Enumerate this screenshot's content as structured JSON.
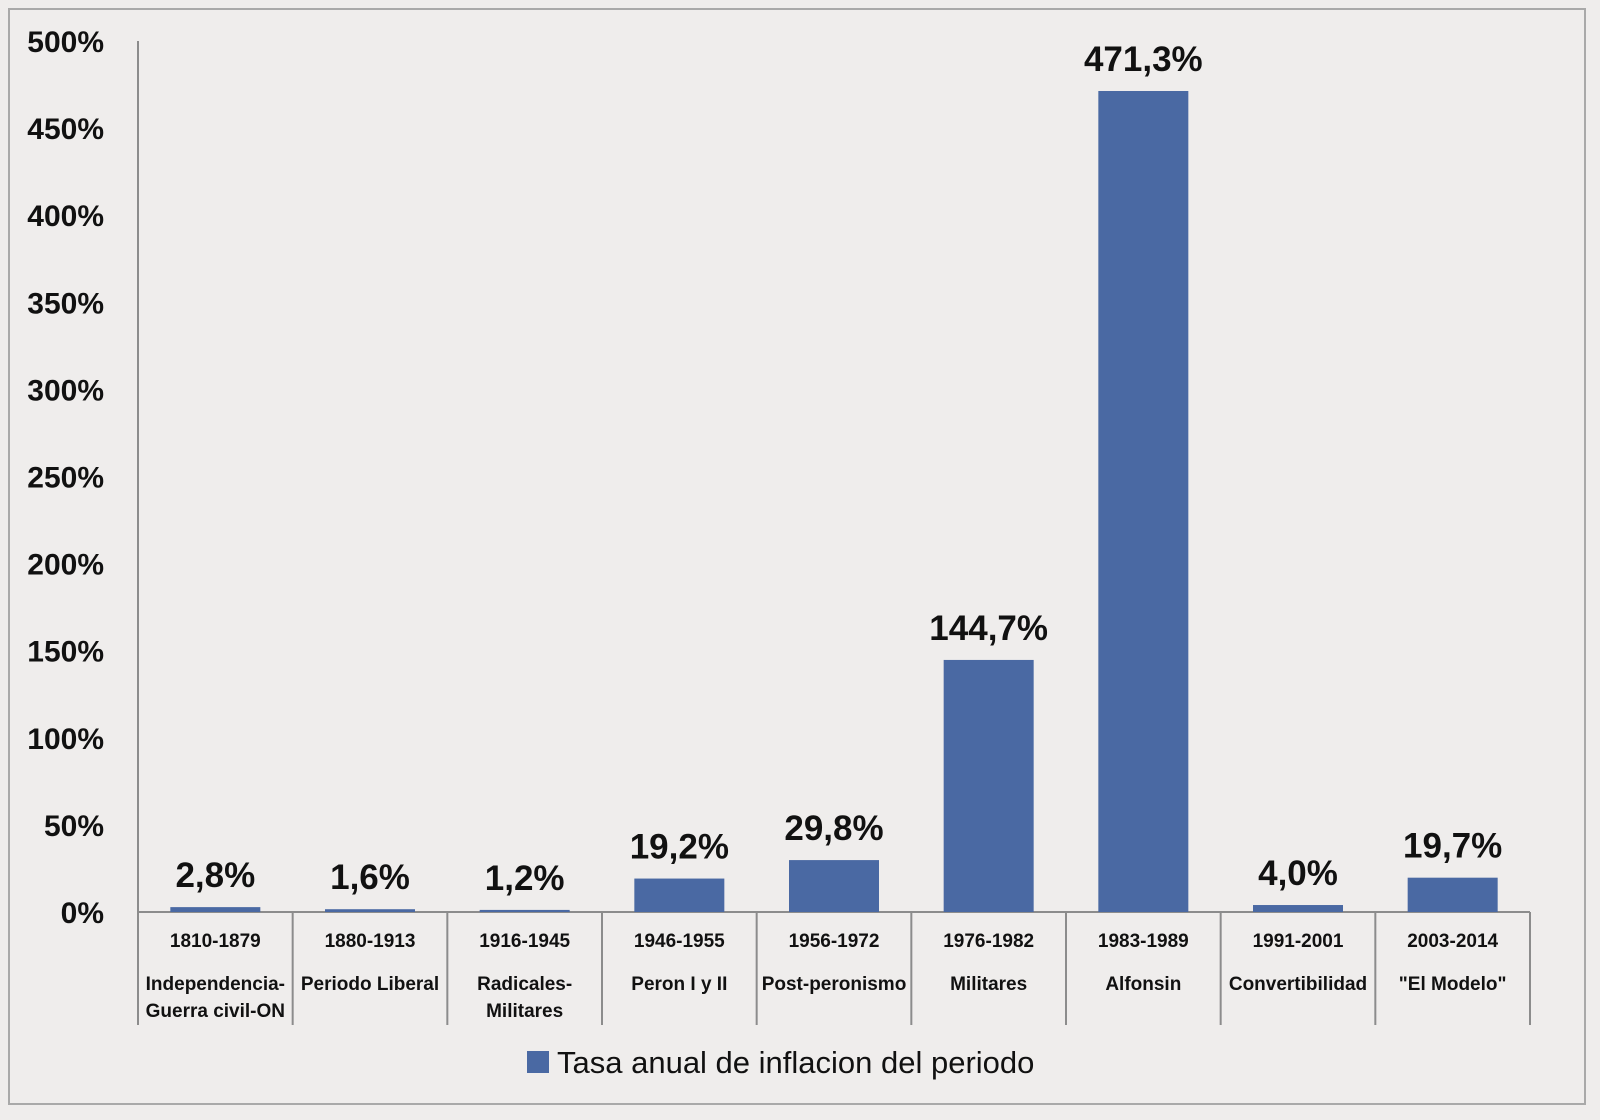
{
  "chart_data": {
    "type": "bar",
    "title": "",
    "xlabel": "",
    "ylabel": "",
    "ylim": [
      0,
      500
    ],
    "yticks": [
      "0%",
      "50%",
      "100%",
      "150%",
      "200%",
      "250%",
      "300%",
      "350%",
      "400%",
      "450%",
      "500%"
    ],
    "grid": false,
    "legend_position": "bottom",
    "bar_color": "#4a69a3",
    "categories": [
      {
        "period": "1810-1879",
        "name": [
          "Independencia-",
          "Guerra civil-ON"
        ]
      },
      {
        "period": "1880-1913",
        "name": [
          "Periodo Liberal"
        ]
      },
      {
        "period": "1916-1945",
        "name": [
          "Radicales-",
          "Militares"
        ]
      },
      {
        "period": "1946-1955",
        "name": [
          "Peron I y II"
        ]
      },
      {
        "period": "1956-1972",
        "name": [
          "Post-peronismo"
        ]
      },
      {
        "period": "1976-1982",
        "name": [
          "Militares"
        ]
      },
      {
        "period": "1983-1989",
        "name": [
          "Alfonsin"
        ]
      },
      {
        "period": "1991-2001",
        "name": [
          "Convertibilidad"
        ]
      },
      {
        "period": "2003-2014",
        "name": [
          "\"El Modelo\""
        ]
      }
    ],
    "series": [
      {
        "name": "Tasa anual de inflacion del periodo",
        "values": [
          2.8,
          1.6,
          1.2,
          19.2,
          29.8,
          144.7,
          471.3,
          4.0,
          19.7
        ],
        "labels": [
          "2,8%",
          "1,6%",
          "1,2%",
          "19,2%",
          "29,8%",
          "144,7%",
          "471,3%",
          "4,0%",
          "19,7%"
        ]
      }
    ]
  }
}
